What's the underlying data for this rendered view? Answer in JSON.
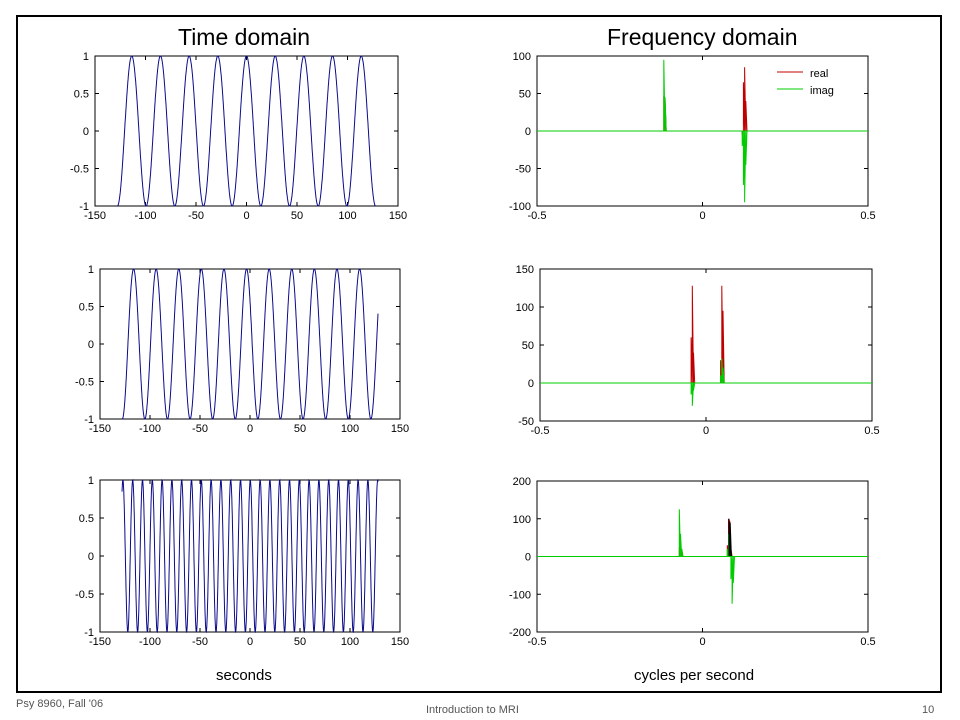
{
  "slide": {
    "titles": {
      "left": "Time domain",
      "right": "Frequency domain"
    },
    "xlabels": {
      "left": "seconds",
      "right": "cycles per second"
    },
    "footer": {
      "course": "Psy 8960, Fall '06",
      "topic": "Introduction to MRI",
      "page": "10"
    }
  },
  "colors": {
    "time_line": "#0a0a8c",
    "real": "#c00000",
    "imag": "#00cc00",
    "peak_dark": "#000000"
  },
  "chart_data": [
    {
      "type": "line",
      "domain": "time",
      "xlim": [
        -150,
        150
      ],
      "ylim": [
        -1,
        1
      ],
      "xticks": [
        -150,
        -100,
        -50,
        0,
        50,
        100,
        150
      ],
      "xtick_labels": [
        "-150",
        "-100",
        "-50",
        "0",
        "50",
        "100",
        "150"
      ],
      "yticks": [
        1,
        0.5,
        0,
        -0.5,
        -1
      ],
      "ytick_labels": [
        "1",
        "0.5",
        "0",
        "-0.5",
        "-1"
      ],
      "x_range": [
        -128,
        128
      ],
      "period": 28.4,
      "phase_deg": 90,
      "amplitude": 1
    },
    {
      "type": "line",
      "domain": "frequency",
      "xlim": [
        -0.5,
        0.5
      ],
      "ylim": [
        -100,
        100
      ],
      "xticks": [
        -0.5,
        0,
        0.5
      ],
      "xtick_labels": [
        "-0.5",
        "0",
        "0.5"
      ],
      "yticks": [
        100,
        50,
        0,
        -50,
        -100
      ],
      "ytick_labels": [
        "100",
        "50",
        "0",
        "-50",
        "-100"
      ],
      "legend": {
        "entries": [
          "real",
          "imag"
        ],
        "placement": "top-right"
      },
      "series": [
        {
          "name": "real",
          "spikes": [
            {
              "x": -0.117,
              "values": [
                47,
                44
              ]
            },
            {
              "x": 0.12,
              "values": [
                -5,
                65,
                85,
                40
              ]
            }
          ]
        },
        {
          "name": "imag",
          "spikes": [
            {
              "x": -0.117,
              "values": [
                95,
                45
              ]
            },
            {
              "x": 0.12,
              "values": [
                -20,
                -72,
                -95,
                -45
              ]
            }
          ]
        }
      ]
    },
    {
      "type": "line",
      "domain": "time",
      "xlim": [
        -150,
        150
      ],
      "ylim": [
        -1,
        1
      ],
      "xticks": [
        -150,
        -100,
        -50,
        0,
        50,
        100,
        150
      ],
      "xtick_labels": [
        "-150",
        "-100",
        "-50",
        "0",
        "50",
        "100",
        "150"
      ],
      "yticks": [
        1,
        0.5,
        0,
        -0.5,
        -1
      ],
      "ytick_labels": [
        "1",
        "0.5",
        "0",
        "-0.5",
        "-1"
      ],
      "x_range": [
        -128,
        128
      ],
      "period": 22.6,
      "phase_deg": 145,
      "amplitude": 1
    },
    {
      "type": "line",
      "domain": "frequency",
      "xlim": [
        -0.5,
        0.5
      ],
      "ylim": [
        -50,
        150
      ],
      "xticks": [
        -0.5,
        0,
        0.5
      ],
      "xtick_labels": [
        "-0.5",
        "0",
        "0.5"
      ],
      "yticks": [
        150,
        100,
        50,
        0,
        -50
      ],
      "ytick_labels": [
        "150",
        "100",
        "50",
        "0",
        "-50"
      ],
      "series": [
        {
          "name": "real",
          "spikes": [
            {
              "x": -0.045,
              "values": [
                60,
                128,
                40
              ]
            },
            {
              "x": 0.044,
              "values": [
                30,
                128,
                95
              ]
            }
          ]
        },
        {
          "name": "imag",
          "spikes": [
            {
              "x": -0.045,
              "values": [
                -15,
                -30,
                -10
              ]
            },
            {
              "x": 0.044,
              "values": [
                10,
                32,
                20
              ]
            }
          ]
        }
      ]
    },
    {
      "type": "line",
      "domain": "time",
      "xlim": [
        -150,
        150
      ],
      "ylim": [
        -1,
        1
      ],
      "xticks": [
        -150,
        -100,
        -50,
        0,
        50,
        100,
        150
      ],
      "xtick_labels": [
        "-150",
        "-100",
        "-50",
        "0",
        "50",
        "100",
        "150"
      ],
      "yticks": [
        1,
        0.5,
        0,
        -0.5,
        -1
      ],
      "ytick_labels": [
        "1",
        "0.5",
        "0",
        "-0.5",
        "-1"
      ],
      "x_range": [
        -128,
        128
      ],
      "period": 9.8,
      "phase_deg": 80,
      "amplitude": 1
    },
    {
      "type": "line",
      "domain": "frequency",
      "xlim": [
        -0.5,
        0.5
      ],
      "ylim": [
        -200,
        200
      ],
      "xticks": [
        -0.5,
        0,
        0.5
      ],
      "xtick_labels": [
        "-0.5",
        "0",
        "0.5"
      ],
      "yticks": [
        200,
        100,
        0,
        -100,
        -200
      ],
      "ytick_labels": [
        "200",
        "100",
        "0",
        "-100",
        "-200"
      ],
      "series": [
        {
          "name": "real",
          "spikes": [
            {
              "x": -0.07,
              "values": [
                25,
                35,
                20
              ]
            },
            {
              "x": 0.075,
              "values": [
                30,
                100,
                95,
                20
              ]
            }
          ]
        },
        {
          "name": "imag",
          "spikes": [
            {
              "x": -0.07,
              "values": [
                125,
                60,
                20
              ]
            },
            {
              "x": 0.075,
              "values": [
                20,
                60,
                40,
                -60,
                -125,
                -70
              ]
            }
          ]
        },
        {
          "name": "",
          "spikes": [
            {
              "x": 0.08,
              "values": [
                100,
                90
              ]
            }
          ]
        }
      ]
    }
  ]
}
